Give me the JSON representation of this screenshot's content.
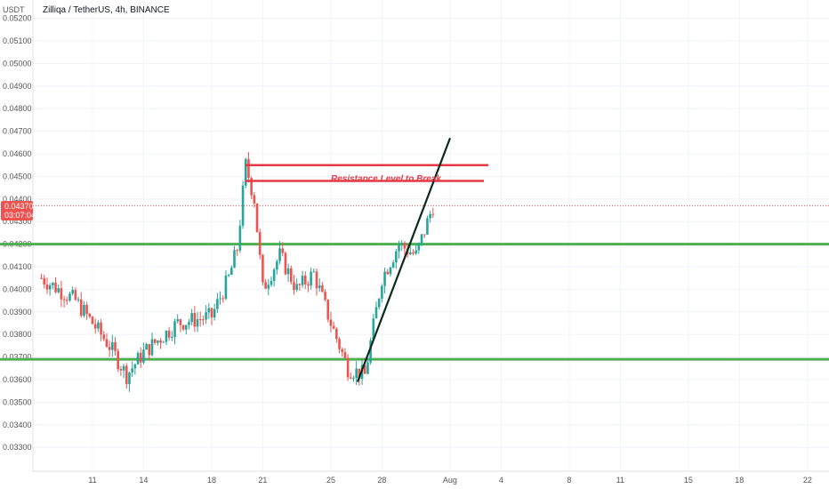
{
  "header": {
    "unit": "USDT",
    "title": "Zilliqa / TetherUS, 4h, BINANCE"
  },
  "price_badge": {
    "price": "0.04370",
    "countdown": "03:07:04"
  },
  "annotation": {
    "text": "Resistance Level to Break"
  },
  "colors": {
    "up": "#26a69a",
    "down": "#ef5350",
    "support": "#4caf50",
    "resistance": "#e53945",
    "trendline": "#0b2a1c",
    "badge": "#ef5350",
    "grid": "#f0f3fa"
  },
  "chart_data": {
    "type": "candlestick",
    "title": "Zilliqa / TetherUS, 4h, BINANCE",
    "ylabel": "USDT",
    "ylim": [
      0.0325,
      0.0522
    ],
    "grid": true,
    "y_ticks": [
      "0.05200",
      "0.05100",
      "0.05000",
      "0.04900",
      "0.04800",
      "0.04700",
      "0.04600",
      "0.04500",
      "0.04400",
      "0.04300",
      "0.04200",
      "0.04100",
      "0.04000",
      "0.03900",
      "0.03800",
      "0.03700",
      "0.03600",
      "0.03500",
      "0.03400",
      "0.03300"
    ],
    "x_ticks": [
      "11",
      "14",
      "18",
      "21",
      "25",
      "28",
      "Aug",
      "4",
      "8",
      "11",
      "15",
      "18",
      "22"
    ],
    "last_price": 0.0437,
    "support_levels": [
      0.042,
      0.0369
    ],
    "resistance_zone": [
      0.0448,
      0.0455
    ],
    "trendline": {
      "from_price": 0.0359,
      "to_price": 0.0467,
      "direction": "up"
    },
    "anchors": [
      {
        "date": "Jul 8",
        "price": 0.0405
      },
      {
        "date": "Jul 10",
        "price": 0.0395
      },
      {
        "date": "Jul 12",
        "price": 0.0375
      },
      {
        "date": "Jul 13",
        "price": 0.0362
      },
      {
        "date": "Jul 14",
        "price": 0.0372
      },
      {
        "date": "Jul 16",
        "price": 0.0385
      },
      {
        "date": "Jul 18",
        "price": 0.0388
      },
      {
        "date": "Jul 19",
        "price": 0.0405
      },
      {
        "date": "Jul 19",
        "price": 0.0418
      },
      {
        "date": "Jul 20",
        "price": 0.0455
      },
      {
        "date": "Jul 20",
        "price": 0.044
      },
      {
        "date": "Jul 21",
        "price": 0.04
      },
      {
        "date": "Jul 22",
        "price": 0.0415
      },
      {
        "date": "Jul 23",
        "price": 0.04
      },
      {
        "date": "Jul 24",
        "price": 0.0407
      },
      {
        "date": "Jul 25",
        "price": 0.0385
      },
      {
        "date": "Jul 26",
        "price": 0.0365
      },
      {
        "date": "Jul 27",
        "price": 0.0362
      },
      {
        "date": "Jul 28",
        "price": 0.0405
      },
      {
        "date": "Jul 29",
        "price": 0.042
      },
      {
        "date": "Jul 30",
        "price": 0.0415
      },
      {
        "date": "Jul 31",
        "price": 0.0437
      }
    ]
  }
}
